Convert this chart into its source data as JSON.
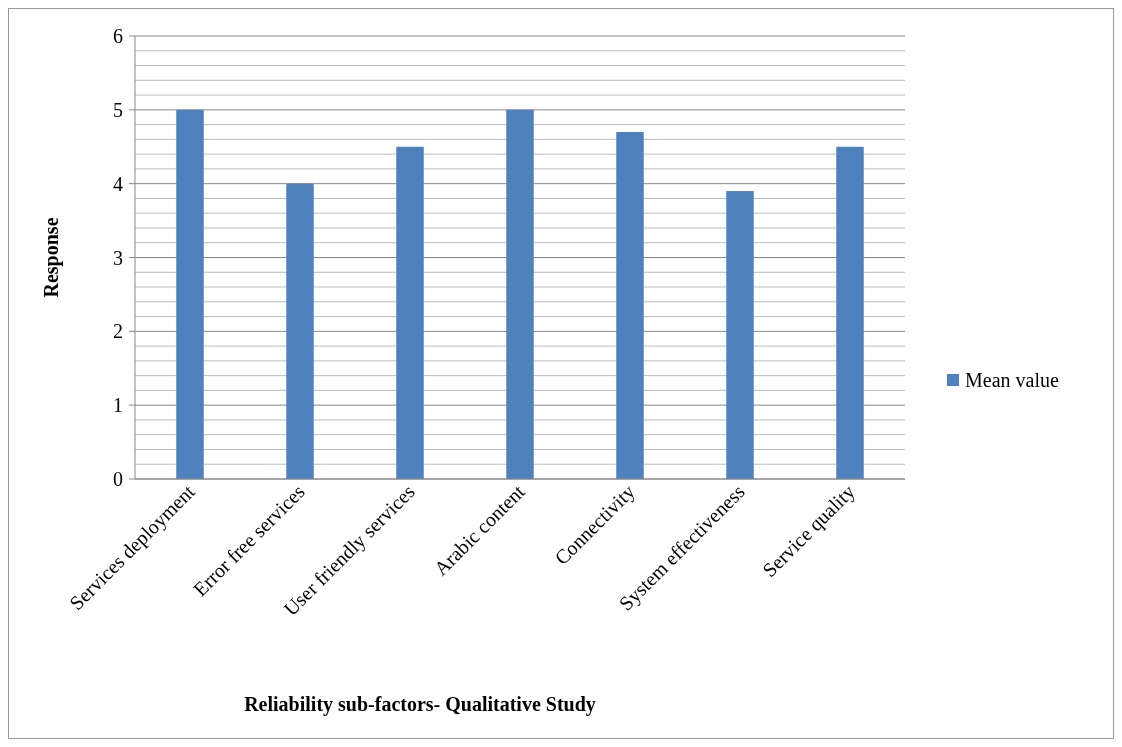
{
  "chart_data": {
    "type": "bar",
    "xlabel": "Reliability sub-factors- Qualitative Study",
    "ylabel": "Response",
    "categories": [
      "Services deployment",
      "Error free services",
      "User friendly services",
      "Arabic content",
      "Connectivity",
      "System effectiveness",
      "Service quality"
    ],
    "series": [
      {
        "name": "Mean value",
        "color": "#4f81bd",
        "values": [
          5,
          4,
          4.5,
          5,
          4.7,
          3.9,
          4.5
        ]
      }
    ],
    "ylim": [
      0,
      6
    ],
    "yticks": [
      0,
      {
        "value": 0.2,
        "label": null
      },
      {
        "value": 0.4,
        "label": null
      },
      {
        "value": 0.6,
        "label": null
      },
      {
        "value": 0.8,
        "label": null
      },
      1,
      {
        "value": 1.2,
        "label": null
      },
      {
        "value": 1.4,
        "label": null
      },
      {
        "value": 1.6,
        "label": null
      },
      {
        "value": 1.8,
        "label": null
      },
      2,
      {
        "value": 2.2,
        "label": null
      },
      {
        "value": 2.4,
        "label": null
      },
      {
        "value": 2.6,
        "label": null
      },
      {
        "value": 2.8,
        "label": null
      },
      3,
      {
        "value": 3.2,
        "label": null
      },
      {
        "value": 3.4,
        "label": null
      },
      {
        "value": 3.6,
        "label": null
      },
      {
        "value": 3.8,
        "label": null
      },
      4,
      {
        "value": 4.2,
        "label": null
      },
      {
        "value": 4.4,
        "label": null
      },
      {
        "value": 4.6,
        "label": null
      },
      {
        "value": 4.8,
        "label": null
      },
      5,
      {
        "value": 5.2,
        "label": null
      },
      {
        "value": 5.4,
        "label": null
      },
      {
        "value": 5.6,
        "label": null
      },
      {
        "value": 5.8,
        "label": null
      },
      6
    ],
    "grid": true,
    "legend": "right"
  }
}
